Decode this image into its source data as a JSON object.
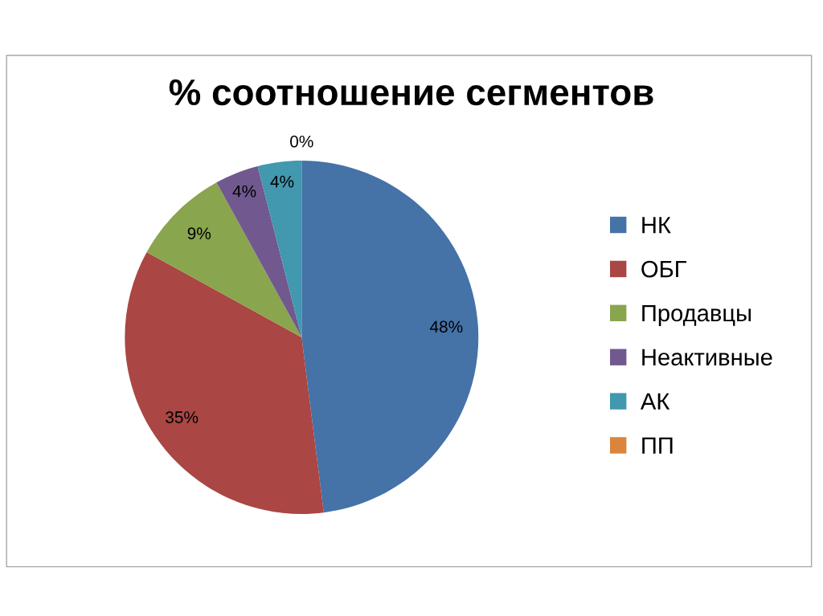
{
  "chart_data": {
    "type": "pie",
    "title": "% соотношение сегментов",
    "categories": [
      "НК",
      "ОБГ",
      "Продавцы",
      "Неактивные",
      "АК",
      "ПП"
    ],
    "values": [
      48,
      35,
      9,
      4,
      4,
      0
    ],
    "colors": [
      "#4572a7",
      "#aa4643",
      "#89a54e",
      "#71588f",
      "#4198af",
      "#db843d"
    ],
    "value_labels": [
      "48%",
      "35%",
      "9%",
      "4%",
      "4%",
      "0%"
    ],
    "legend": "right"
  }
}
